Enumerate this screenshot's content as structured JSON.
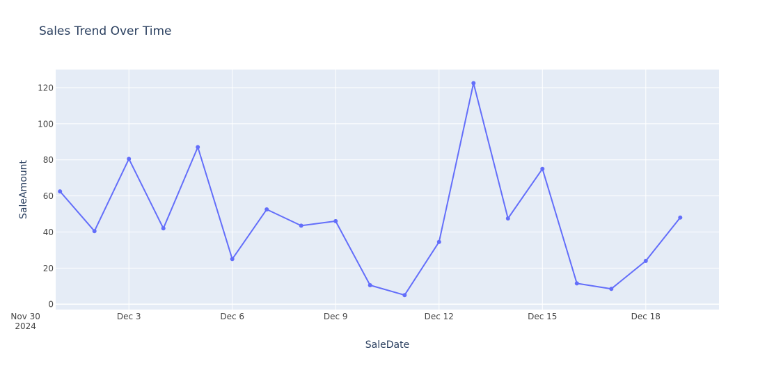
{
  "chart_data": {
    "type": "line",
    "title": "Sales Trend Over Time",
    "xlabel": "SaleDate",
    "ylabel": "SaleAmount",
    "ylim": [
      -3,
      130
    ],
    "xlim": [
      "2024-11-30T21:00",
      "2024-12-20T03:00"
    ],
    "yticks": [
      0,
      20,
      40,
      60,
      80,
      100,
      120
    ],
    "xticks": [
      {
        "date": "2024-11-30",
        "label": "Nov 30",
        "sublabel": "2024"
      },
      {
        "date": "2024-12-03",
        "label": "Dec 3"
      },
      {
        "date": "2024-12-06",
        "label": "Dec 6"
      },
      {
        "date": "2024-12-09",
        "label": "Dec 9"
      },
      {
        "date": "2024-12-12",
        "label": "Dec 12"
      },
      {
        "date": "2024-12-15",
        "label": "Dec 15"
      },
      {
        "date": "2024-12-18",
        "label": "Dec 18"
      }
    ],
    "grid": true,
    "colors": {
      "line": "#636efa",
      "plot_bg": "#e5ecf6",
      "grid": "#ffffff",
      "text": "#2a3f5f",
      "tick_text": "#444444"
    },
    "series": [
      {
        "mode": "lines+markers",
        "x": [
          "2024-12-01",
          "2024-12-02",
          "2024-12-03",
          "2024-12-04",
          "2024-12-05",
          "2024-12-06",
          "2024-12-07",
          "2024-12-08",
          "2024-12-09",
          "2024-12-10",
          "2024-12-11",
          "2024-12-12",
          "2024-12-13",
          "2024-12-14",
          "2024-12-15",
          "2024-12-16",
          "2024-12-17",
          "2024-12-18",
          "2024-12-19"
        ],
        "values": [
          62.5,
          40.5,
          80.5,
          42,
          87,
          25,
          52.5,
          43.5,
          46,
          10.5,
          5,
          34.5,
          122.5,
          47.5,
          75,
          11.5,
          8.5,
          24,
          48
        ]
      }
    ]
  }
}
